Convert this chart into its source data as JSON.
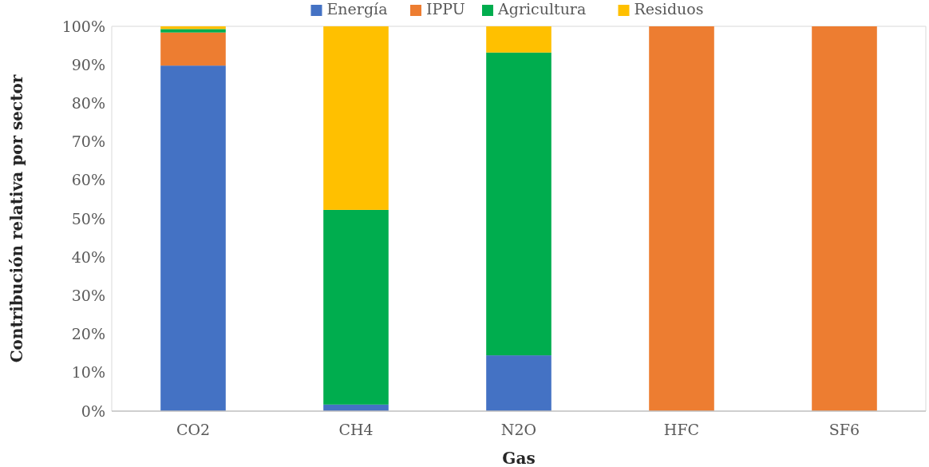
{
  "chart_data": {
    "type": "bar",
    "stacked": true,
    "xlabel": "Gas",
    "ylabel": "Contribución relativa por sector",
    "categories": [
      "CO2",
      "CH4",
      "N2O",
      "HFC",
      "SF6"
    ],
    "series": [
      {
        "name": "Energía",
        "color": "#4472c4",
        "values": [
          89.8,
          1.7,
          14.5,
          0,
          0
        ]
      },
      {
        "name": "IPPU",
        "color": "#ed7d31",
        "values": [
          8.6,
          0,
          0,
          100,
          100
        ]
      },
      {
        "name": "Agricultura",
        "color": "#00ad4e",
        "values": [
          0.9,
          50.6,
          78.7,
          0,
          0
        ]
      },
      {
        "name": "Residuos",
        "color": "#ffc000",
        "values": [
          0.7,
          47.7,
          6.8,
          0,
          0
        ]
      }
    ],
    "ylim": [
      0,
      100
    ],
    "yticks": [
      {
        "value": 0,
        "label": "0%"
      },
      {
        "value": 10,
        "label": "10%"
      },
      {
        "value": 20,
        "label": "20%"
      },
      {
        "value": 30,
        "label": "30%"
      },
      {
        "value": 40,
        "label": "40%"
      },
      {
        "value": 50,
        "label": "50%"
      },
      {
        "value": 60,
        "label": "60%"
      },
      {
        "value": 70,
        "label": "70%"
      },
      {
        "value": 80,
        "label": "80%"
      },
      {
        "value": 90,
        "label": "90%"
      },
      {
        "value": 100,
        "label": "100%"
      }
    ],
    "legend": "top"
  }
}
